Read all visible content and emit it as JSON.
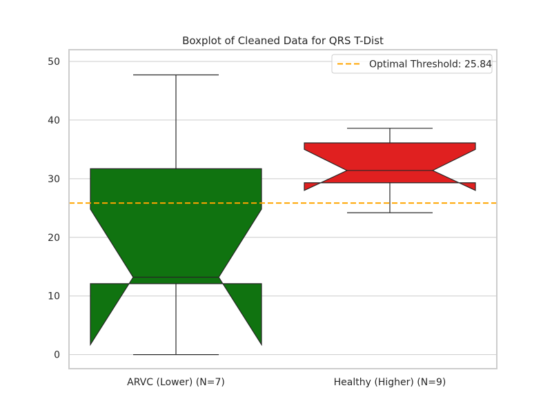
{
  "chart_data": {
    "type": "boxplot",
    "title": "Boxplot of Cleaned Data for QRS T-Dist",
    "xlabel": "",
    "ylabel": "",
    "ylim": [
      -2.4,
      52
    ],
    "yticks": [
      0,
      10,
      20,
      30,
      40,
      50
    ],
    "grid": "horizontal",
    "notched": true,
    "categories": [
      "ARVC (Lower) (N=7)",
      "Healthy (Higher) (N=9)"
    ],
    "boxes": [
      {
        "label": "ARVC (Lower) (N=7)",
        "color": "#107310",
        "whisker_low": 0,
        "q1": 12.1,
        "median": 13.2,
        "q3": 31.7,
        "whisker_high": 47.7,
        "notch_low": 1.7,
        "notch_high": 24.8
      },
      {
        "label": "Healthy (Higher) (N=9)",
        "color": "#e02020",
        "whisker_low": 24.2,
        "q1": 29.3,
        "median": 31.4,
        "q3": 36.1,
        "whisker_high": 38.6,
        "notch_low": 28,
        "notch_high": 35
      }
    ],
    "threshold": {
      "value": 25.84,
      "label": "Optimal Threshold: 25.84",
      "color": "#ffa500",
      "style": "dashed"
    },
    "legend": {
      "placement": "top-right",
      "entries": [
        "Optimal Threshold: 25.84"
      ]
    }
  },
  "colors": {
    "grid": "#cccccc",
    "frame": "#cccccc",
    "edge": "#262626",
    "text": "#262626",
    "background": "#ffffff"
  }
}
